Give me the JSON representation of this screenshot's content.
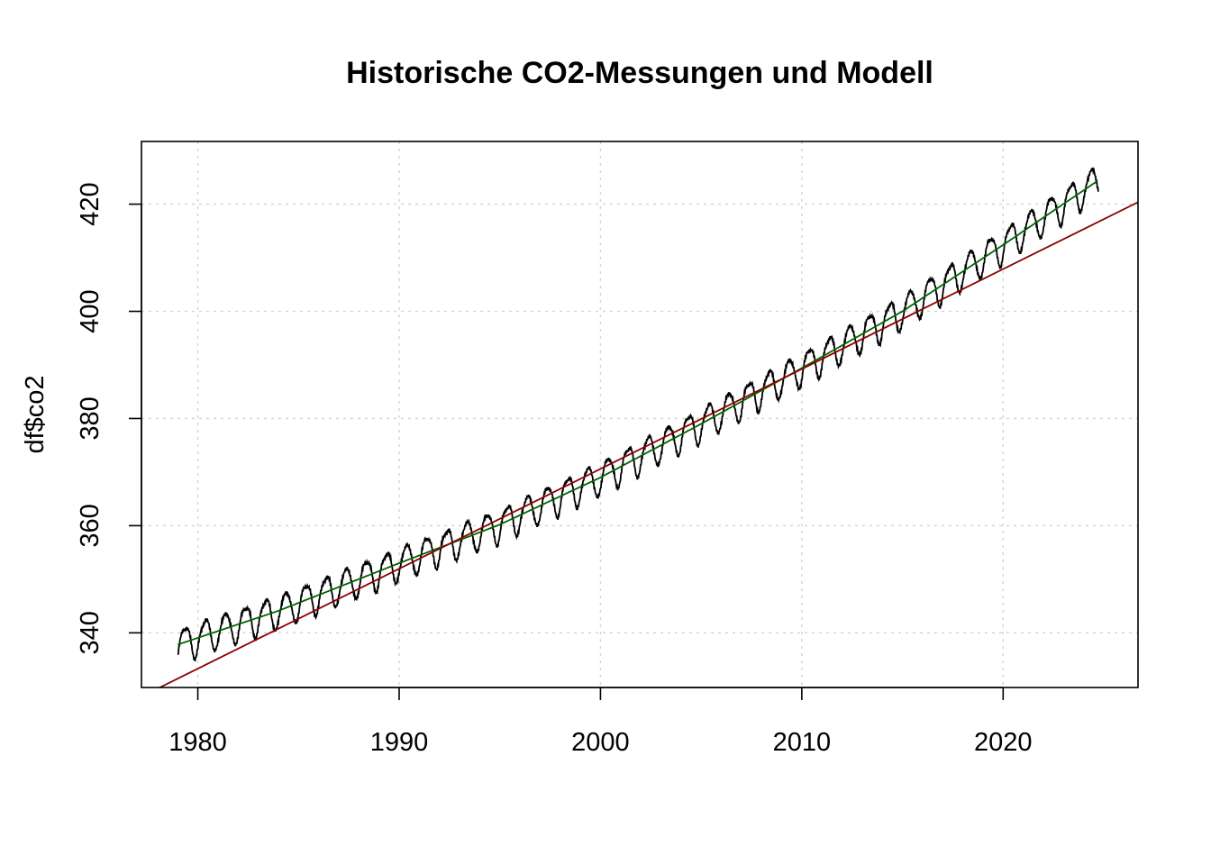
{
  "chart_data": {
    "type": "line",
    "title": "Historische CO2-Messungen und Modell",
    "xlabel": "",
    "ylabel": "df$co2",
    "xlim": [
      1977.2,
      2026.7
    ],
    "ylim": [
      329.8,
      431.7
    ],
    "x_ticks": [
      1980,
      1990,
      2000,
      2010,
      2020
    ],
    "x_tick_labels": [
      "1980",
      "1990",
      "2000",
      "2010",
      "2020"
    ],
    "y_ticks": [
      340,
      360,
      380,
      400,
      420
    ],
    "y_tick_labels": [
      "340",
      "360",
      "380",
      "400",
      "420"
    ],
    "grid": true,
    "series": [
      {
        "kind": "measurements",
        "color": "#000000",
        "x_start": 1979.0,
        "x_end": 2024.75,
        "step_years": 0.0833,
        "trend_points": [
          [
            1979.0,
            337.8
          ],
          [
            1984.0,
            344.1
          ],
          [
            1990.0,
            353.0
          ],
          [
            1995.0,
            360.2
          ],
          [
            2000.0,
            369.0
          ],
          [
            2005.0,
            379.0
          ],
          [
            2010.0,
            389.4
          ],
          [
            2015.0,
            400.0
          ],
          [
            2020.0,
            412.4
          ],
          [
            2024.75,
            424.5
          ]
        ],
        "seasonal_amplitude": 3.1
      },
      {
        "kind": "smoothed-model",
        "color": "#006400",
        "points": [
          [
            1979.0,
            337.8
          ],
          [
            1984.0,
            344.1
          ],
          [
            1990.0,
            353.0
          ],
          [
            1995.0,
            360.2
          ],
          [
            2000.0,
            369.0
          ],
          [
            2005.0,
            379.0
          ],
          [
            2010.0,
            389.4
          ],
          [
            2015.0,
            400.0
          ],
          [
            2020.0,
            412.4
          ],
          [
            2024.75,
            424.5
          ]
        ]
      },
      {
        "kind": "linear-regression",
        "color": "#8b0000",
        "slope": 1.864,
        "intercept_at_2000": 370.6
      }
    ]
  }
}
